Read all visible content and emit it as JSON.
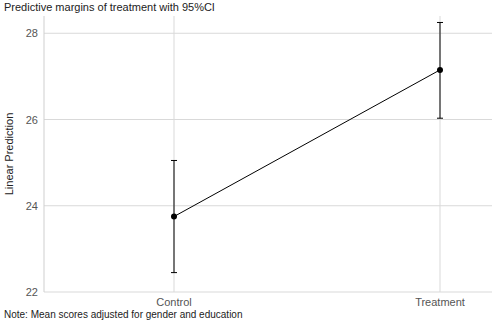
{
  "chart_data": {
    "type": "line",
    "title": "Predictive margins of treatment with 95%CI",
    "y_label": "Linear Prediction",
    "note": "Note: Mean scores adjusted for gender and education",
    "categories": [
      "Control",
      "Treatment"
    ],
    "values": [
      23.75,
      27.15
    ],
    "ci_lower": [
      22.45,
      26.03
    ],
    "ci_upper": [
      25.05,
      28.25
    ],
    "color": "#000000",
    "marker": "circle",
    "ylim": [
      22,
      28.4
    ],
    "yticks": [
      22,
      24,
      26,
      28
    ],
    "grid": true
  }
}
